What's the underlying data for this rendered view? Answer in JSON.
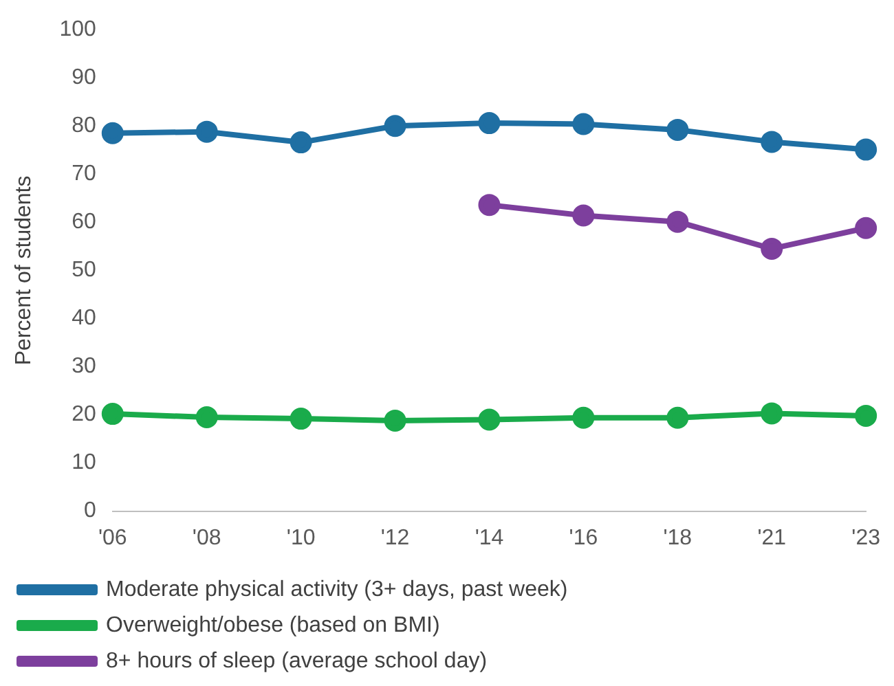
{
  "chart_data": {
    "type": "line",
    "ylabel": "Percent of students",
    "categories": [
      "'06",
      "'08",
      "'10",
      "'12",
      "'14",
      "'16",
      "'18",
      "'21",
      "'23"
    ],
    "series": [
      {
        "name": "Moderate physical activity (3+ days, past week)",
        "color": "#1f6fa3",
        "values": [
          78.5,
          78.8,
          76.6,
          80,
          80.6,
          80.4,
          79.2,
          76.7,
          75.1
        ]
      },
      {
        "name": "Overweight/obese (based on BMI)",
        "color": "#1aab4b",
        "values": [
          20.2,
          19.5,
          19.2,
          18.8,
          19,
          19.4,
          19.4,
          20.3,
          19.8
        ]
      },
      {
        "name": "8+ hours of sleep (average school day)",
        "color": "#7d3f9d",
        "values": [
          null,
          null,
          null,
          null,
          63.6,
          61.4,
          60.1,
          54.5,
          58.8
        ]
      }
    ],
    "ylim": [
      0,
      100
    ],
    "yticks": [
      0,
      10,
      20,
      30,
      40,
      50,
      60,
      70,
      80,
      90,
      100
    ],
    "grid": false,
    "legend": "bottom",
    "marker": "circle",
    "line_style": "solid"
  }
}
